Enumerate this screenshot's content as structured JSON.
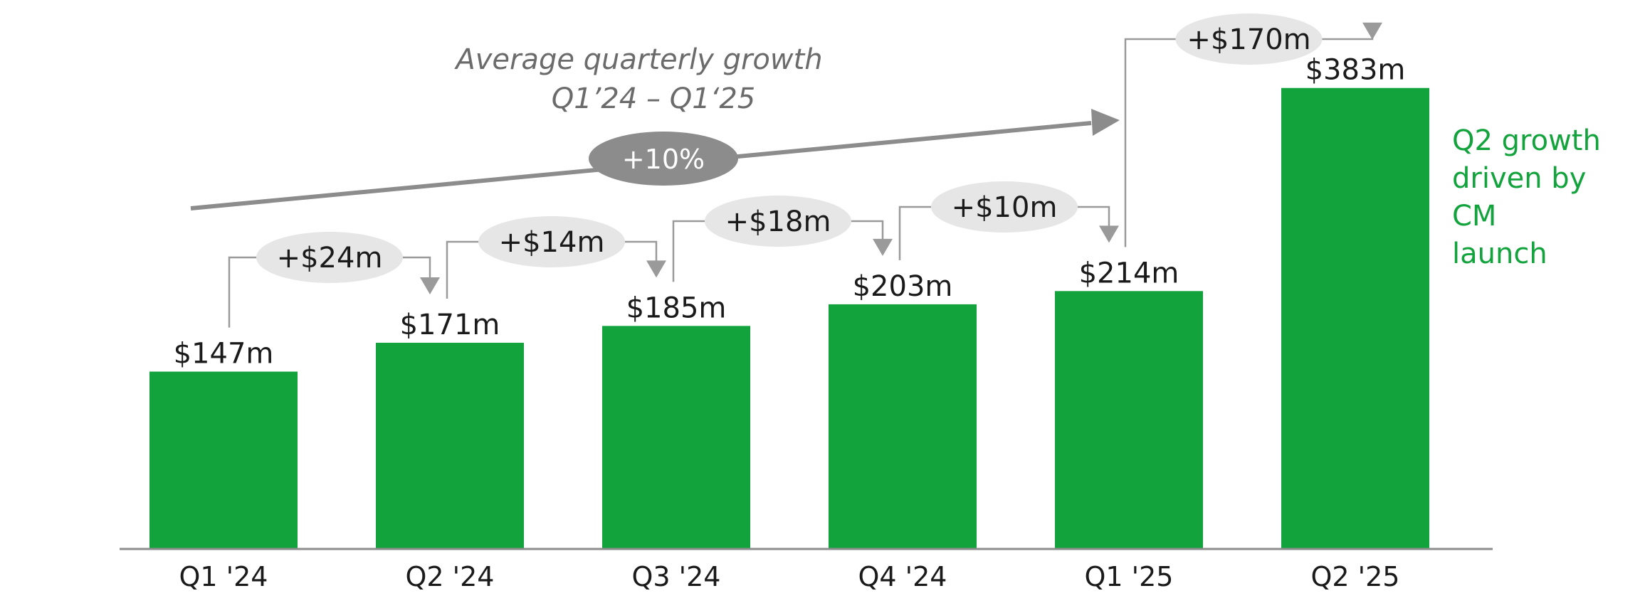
{
  "chart_data": {
    "type": "bar",
    "categories": [
      "Q1 '24",
      "Q2 '24",
      "Q3 '24",
      "Q4 '24",
      "Q1 '25",
      "Q2 '25"
    ],
    "values": [
      147,
      171,
      185,
      203,
      214,
      383
    ],
    "value_labels": [
      "$147m",
      "$171m",
      "$185m",
      "$203m",
      "$214m",
      "$383m"
    ],
    "unit": "$m",
    "ylim": [
      0,
      410
    ],
    "grid": false,
    "bar_color": "#12a33d",
    "deltas": [
      {
        "from": 0,
        "to": 1,
        "value": 24,
        "label": "+$24m"
      },
      {
        "from": 1,
        "to": 2,
        "value": 14,
        "label": "+$14m"
      },
      {
        "from": 2,
        "to": 3,
        "value": 18,
        "label": "+$18m"
      },
      {
        "from": 3,
        "to": 4,
        "value": 10,
        "label": "+$10m"
      },
      {
        "from": 4,
        "to": 5,
        "value": 170,
        "label": "+$170m"
      }
    ],
    "growth_annotation": {
      "title_line1": "Average quarterly growth",
      "title_line2": "Q1’24 – Q1‘25",
      "value": "+10%"
    },
    "side_note": [
      "Q2 growth",
      "driven by",
      "CM",
      "launch"
    ]
  }
}
